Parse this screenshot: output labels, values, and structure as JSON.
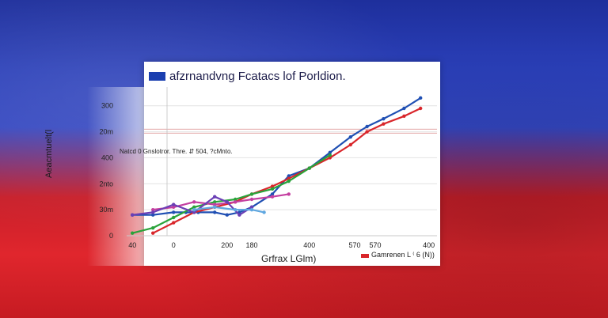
{
  "chart_data": {
    "type": "line",
    "title": "afzrnandvng Fcatacs lof Porldion.",
    "annotation": "Natcd  0 Gnslotror. Thre.    ⇵    504, ?cMnto.",
    "ylabel": "Aeacmtuelt(l",
    "xlabel": "Grfrax LGlm)",
    "legend_text": "Gamrenen    L ⁽ 6 (N))",
    "y_ticks": [
      "0",
      "30m",
      "2nto",
      "400",
      "20m",
      "300"
    ],
    "y_tick_values": [
      0,
      1,
      2,
      3,
      4,
      5
    ],
    "x_ticks": [
      "40",
      "0",
      "200",
      "180",
      "400",
      "570",
      "570",
      "400"
    ],
    "x_tick_values": [
      0,
      1,
      2.3,
      2.9,
      4.3,
      5.4,
      5.9,
      7.2
    ],
    "xlim": [
      -0.1,
      7.4
    ],
    "ylim": [
      0,
      5.6
    ],
    "ref_lines": [
      4.1,
      3.95
    ],
    "grid": true,
    "legend_placement": "bottom-right",
    "series": [
      {
        "name": "",
        "color": "#1f4fb3",
        "x": [
          0,
          0.5,
          1,
          1.3,
          1.6,
          2,
          2.3,
          2.6,
          2.9,
          3.4,
          3.8,
          4.3,
          4.8,
          5.3,
          5.7,
          6.1,
          6.6,
          7.0
        ],
        "y": [
          0.8,
          0.8,
          0.9,
          0.9,
          0.9,
          0.9,
          0.8,
          0.9,
          1.1,
          1.6,
          2.3,
          2.6,
          3.2,
          3.8,
          4.2,
          4.5,
          4.9,
          5.3
        ]
      },
      {
        "name": "",
        "color": "#d9262b",
        "x": [
          0.5,
          1,
          1.5,
          2,
          2.5,
          2.9,
          3.4,
          3.8,
          4.3,
          4.8,
          5.3,
          5.7,
          6.1,
          6.6,
          7.0
        ],
        "y": [
          0.1,
          0.5,
          0.9,
          1.1,
          1.3,
          1.6,
          1.9,
          2.2,
          2.6,
          3.0,
          3.5,
          4.0,
          4.3,
          4.6,
          4.9
        ]
      },
      {
        "name": "",
        "color": "#2aa33a",
        "x": [
          0,
          0.5,
          1,
          1.5,
          2,
          2.5,
          2.9,
          3.4,
          3.8,
          4.3,
          4.8
        ],
        "y": [
          0.1,
          0.3,
          0.7,
          1.1,
          1.3,
          1.4,
          1.6,
          1.8,
          2.1,
          2.6,
          3.1
        ]
      },
      {
        "name": "",
        "color": "#c43fa0",
        "x": [
          0.5,
          1,
          1.5,
          2,
          2.5,
          2.9,
          3.4,
          3.8
        ],
        "y": [
          1.0,
          1.1,
          1.3,
          1.2,
          1.3,
          1.4,
          1.5,
          1.6
        ]
      },
      {
        "name": "",
        "color": "#6a3fb5",
        "x": [
          0,
          0.5,
          1,
          1.5,
          2,
          2.3,
          2.6,
          2.9
        ],
        "y": [
          0.8,
          0.9,
          1.2,
          0.9,
          1.5,
          1.3,
          0.8,
          1.1
        ]
      },
      {
        "name": "",
        "color": "#5fa7e0",
        "x": [
          1.5,
          2,
          2.5,
          2.9,
          3.2
        ],
        "y": [
          1.0,
          1.1,
          1.0,
          1.0,
          0.9
        ]
      }
    ]
  }
}
